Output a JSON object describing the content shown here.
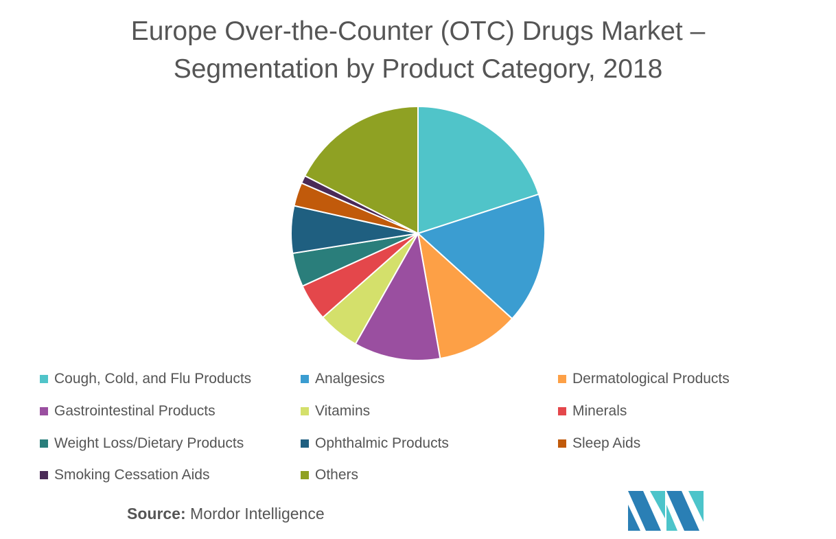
{
  "chart_data": {
    "type": "pie",
    "title": "Europe Over-the-Counter (OTC) Drugs Market – Segmentation by Product Category, 2018",
    "title_lines": [
      "Europe Over-the-Counter (OTC) Drugs Market –",
      "Segmentation by Product Category, 2018"
    ],
    "legend_position": "bottom",
    "slices": [
      {
        "label": "Cough, Cold, and Flu Products",
        "value": 20,
        "color": "#50c4c9"
      },
      {
        "label": "Analgesics",
        "value": 16.7,
        "color": "#3b9dd1"
      },
      {
        "label": "Dermatological Products",
        "value": 10.5,
        "color": "#fda046"
      },
      {
        "label": "Gastrointestinal Products",
        "value": 11,
        "color": "#9a4fa0"
      },
      {
        "label": "Vitamins",
        "value": 5.3,
        "color": "#d4e06b"
      },
      {
        "label": "Minerals",
        "value": 4.7,
        "color": "#e4474b"
      },
      {
        "label": "Weight Loss/Dietary Products",
        "value": 4.3,
        "color": "#2a7e7b"
      },
      {
        "label": "Ophthalmic Products",
        "value": 6,
        "color": "#1f5f80"
      },
      {
        "label": "Sleep Aids",
        "value": 3,
        "color": "#c15a0b"
      },
      {
        "label": "Smoking Cessation Aids",
        "value": 1,
        "color": "#4a2a57"
      },
      {
        "label": "Others",
        "value": 17.5,
        "color": "#8fa123"
      }
    ]
  },
  "source": {
    "label": "Source:",
    "value": " Mordor Intelligence"
  }
}
